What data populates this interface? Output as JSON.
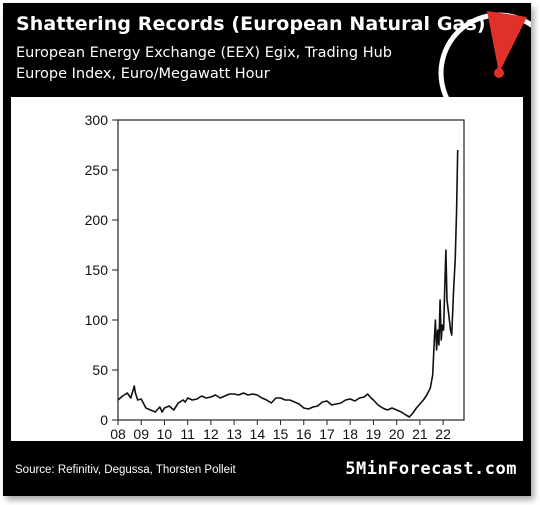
{
  "header": {
    "title": "Shattering Records (European Natural Gas)",
    "subtitle": "European Energy Exchange (EEX) Egix, Trading Hub Europe Index, Euro/Megawatt Hour"
  },
  "footer": {
    "source": "Source: Refinitiv, Degussa, Thorsten Polleit",
    "brand": "5MinForecast.com"
  },
  "colors": {
    "background": "#000000",
    "panel": "#ffffff",
    "line": "#111111",
    "accent": "#e0302a"
  },
  "chart_data": {
    "type": "line",
    "title": "Shattering Records (European Natural Gas)",
    "subtitle": "European Energy Exchange (EEX) Egix, Trading Hub Europe Index, Euro/Megawatt Hour",
    "xlabel": "",
    "ylabel": "",
    "xlim": [
      2008,
      2022.9
    ],
    "ylim": [
      0,
      300
    ],
    "x_ticks": [
      "08",
      "09",
      "10",
      "11",
      "12",
      "13",
      "14",
      "15",
      "16",
      "17",
      "18",
      "19",
      "20",
      "21",
      "22"
    ],
    "x_tick_values": [
      2008,
      2009,
      2010,
      2011,
      2012,
      2013,
      2014,
      2015,
      2016,
      2017,
      2018,
      2019,
      2020,
      2021,
      2022
    ],
    "y_ticks": [
      0,
      50,
      100,
      150,
      200,
      250,
      300
    ],
    "grid": false,
    "series": [
      {
        "values": [
          [
            2008.0,
            20
          ],
          [
            2008.2,
            24
          ],
          [
            2008.4,
            27
          ],
          [
            2008.55,
            22
          ],
          [
            2008.7,
            34
          ],
          [
            2008.75,
            27
          ],
          [
            2008.85,
            20
          ],
          [
            2009.0,
            21
          ],
          [
            2009.2,
            12
          ],
          [
            2009.4,
            10
          ],
          [
            2009.6,
            8
          ],
          [
            2009.8,
            13
          ],
          [
            2009.9,
            8
          ],
          [
            2010.0,
            12
          ],
          [
            2010.2,
            14
          ],
          [
            2010.4,
            10
          ],
          [
            2010.6,
            17
          ],
          [
            2010.8,
            20
          ],
          [
            2010.9,
            18
          ],
          [
            2011.0,
            22
          ],
          [
            2011.2,
            20
          ],
          [
            2011.4,
            21
          ],
          [
            2011.6,
            24
          ],
          [
            2011.8,
            22
          ],
          [
            2012.0,
            23
          ],
          [
            2012.2,
            25
          ],
          [
            2012.4,
            22
          ],
          [
            2012.6,
            24
          ],
          [
            2012.8,
            26
          ],
          [
            2013.0,
            26
          ],
          [
            2013.2,
            25
          ],
          [
            2013.4,
            27
          ],
          [
            2013.6,
            25
          ],
          [
            2013.8,
            26
          ],
          [
            2014.0,
            25
          ],
          [
            2014.2,
            22
          ],
          [
            2014.4,
            20
          ],
          [
            2014.6,
            17
          ],
          [
            2014.8,
            22
          ],
          [
            2015.0,
            22
          ],
          [
            2015.2,
            20
          ],
          [
            2015.4,
            20
          ],
          [
            2015.6,
            18
          ],
          [
            2015.8,
            16
          ],
          [
            2016.0,
            12
          ],
          [
            2016.2,
            11
          ],
          [
            2016.4,
            13
          ],
          [
            2016.6,
            14
          ],
          [
            2016.8,
            18
          ],
          [
            2017.0,
            19
          ],
          [
            2017.2,
            15
          ],
          [
            2017.4,
            16
          ],
          [
            2017.6,
            17
          ],
          [
            2017.8,
            20
          ],
          [
            2018.0,
            21
          ],
          [
            2018.2,
            19
          ],
          [
            2018.4,
            22
          ],
          [
            2018.6,
            23
          ],
          [
            2018.75,
            26
          ],
          [
            2018.9,
            22
          ],
          [
            2019.0,
            20
          ],
          [
            2019.2,
            15
          ],
          [
            2019.4,
            12
          ],
          [
            2019.6,
            10
          ],
          [
            2019.8,
            12
          ],
          [
            2020.0,
            10
          ],
          [
            2020.2,
            8
          ],
          [
            2020.4,
            5
          ],
          [
            2020.55,
            3
          ],
          [
            2020.7,
            7
          ],
          [
            2020.85,
            12
          ],
          [
            2021.0,
            16
          ],
          [
            2021.15,
            20
          ],
          [
            2021.3,
            25
          ],
          [
            2021.45,
            32
          ],
          [
            2021.55,
            45
          ],
          [
            2021.62,
            80
          ],
          [
            2021.67,
            100
          ],
          [
            2021.72,
            70
          ],
          [
            2021.77,
            90
          ],
          [
            2021.82,
            75
          ],
          [
            2021.87,
            120
          ],
          [
            2021.92,
            80
          ],
          [
            2021.97,
            95
          ],
          [
            2022.02,
            90
          ],
          [
            2022.07,
            130
          ],
          [
            2022.12,
            170
          ],
          [
            2022.17,
            120
          ],
          [
            2022.22,
            110
          ],
          [
            2022.27,
            100
          ],
          [
            2022.32,
            90
          ],
          [
            2022.37,
            85
          ],
          [
            2022.45,
            130
          ],
          [
            2022.52,
            160
          ],
          [
            2022.58,
            210
          ],
          [
            2022.63,
            270
          ]
        ]
      }
    ]
  }
}
